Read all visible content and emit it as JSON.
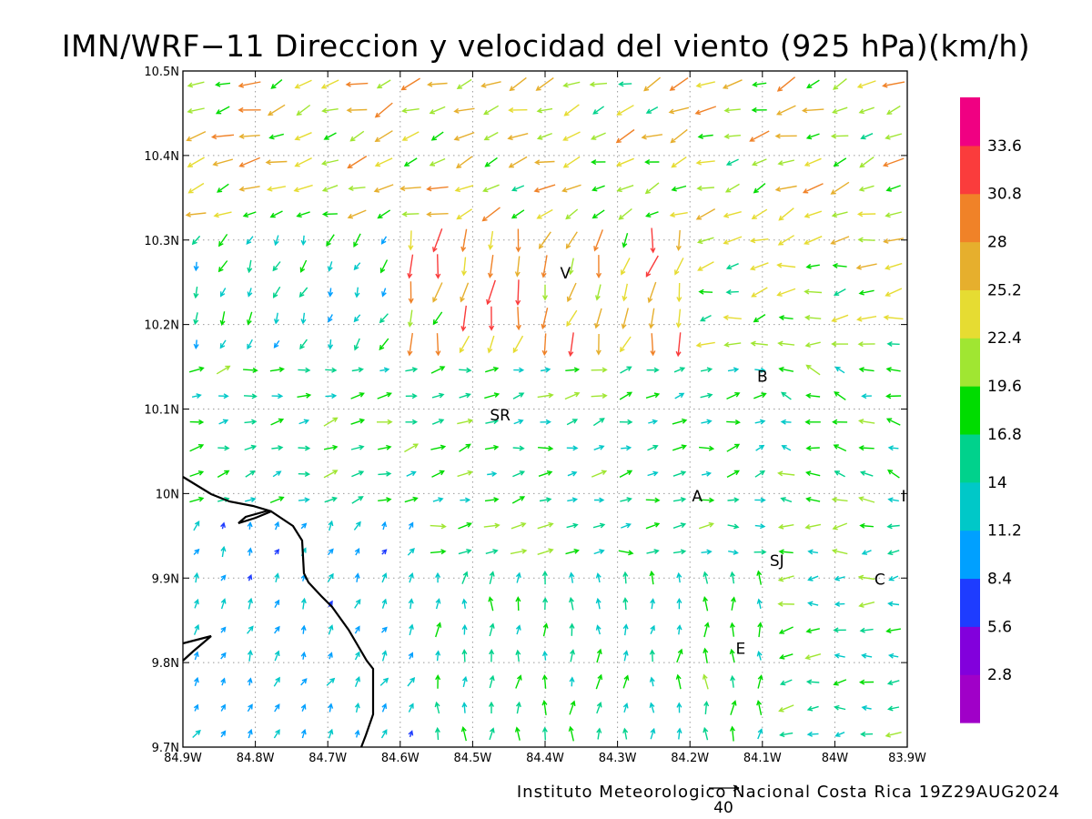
{
  "title": "IMN/WRF−11 Direccion y velocidad del viento (925 hPa)(km/h)",
  "credit": "Instituto Meteorologico Nacional Costa Rica 19Z29AUG2024",
  "reference_vector_label": "40",
  "colors": {
    "frame": "#000000",
    "grid": "#9a9a9a",
    "coastline": "#000000",
    "colorbar": [
      "#a000c8",
      "#8200dc",
      "#1e3cff",
      "#00a0ff",
      "#00c8c8",
      "#00d28c",
      "#00dc00",
      "#a0e632",
      "#e6dc32",
      "#e6af2d",
      "#f08228",
      "#fa3c3c",
      "#f00082"
    ]
  },
  "axes": {
    "x_ticks": [
      "84.9W",
      "84.8W",
      "84.7W",
      "84.6W",
      "84.5W",
      "84.4W",
      "84.3W",
      "84.2W",
      "84.1W",
      "84W",
      "83.9W"
    ],
    "y_ticks": [
      "9.7N",
      "9.8N",
      "9.9N",
      "10N",
      "10.1N",
      "10.2N",
      "10.3N",
      "10.4N",
      "10.5N"
    ]
  },
  "colorbar": {
    "labels": [
      "2.8",
      "5.6",
      "8.4",
      "11.2",
      "14",
      "16.8",
      "19.6",
      "22.4",
      "25.2",
      "28",
      "30.8",
      "33.6"
    ]
  },
  "cities": [
    {
      "label": "V",
      "lon": -84.372,
      "lat": 10.262
    },
    {
      "label": "B",
      "lon": -84.1,
      "lat": 10.14
    },
    {
      "label": "SR",
      "lon": -84.462,
      "lat": 10.094
    },
    {
      "label": "A",
      "lon": -84.19,
      "lat": 9.998
    },
    {
      "label": "I",
      "lon": -83.905,
      "lat": 9.998
    },
    {
      "label": "SJ",
      "lon": -84.08,
      "lat": 9.922
    },
    {
      "label": "C",
      "lon": -83.938,
      "lat": 9.9
    },
    {
      "label": "E",
      "lon": -84.13,
      "lat": 9.818
    }
  ],
  "chart_data": {
    "type": "vector-field",
    "variable": "wind direction and speed at 925 hPa (km/h)",
    "domain": {
      "lon": [
        -84.9,
        -83.9
      ],
      "lat": [
        9.7,
        10.5
      ]
    },
    "speed_colorbar_ticks": [
      2.8,
      5.6,
      8.4,
      11.2,
      14,
      16.8,
      19.6,
      22.4,
      25.2,
      28,
      30.8,
      33.6
    ],
    "reference_vector_kmh": 40,
    "regions": [
      {
        "area": "north (10.35N-10.5N)",
        "direction": "from NE (flow toward SW/WSW)",
        "speed_kmh": [
          19,
          28
        ]
      },
      {
        "area": "north-central mountains (10.15N-10.35N, 84.6W-84.2W)",
        "direction": "from NNE (flow toward SSW)",
        "speed_kmh": [
          22,
          36
        ]
      },
      {
        "area": "west-central (9.95N-10.15N, 84.9W-84.3W)",
        "direction": "from W/SW (flow toward ENE)",
        "speed_kmh": [
          8,
          25
        ]
      },
      {
        "area": "Pacific side south-west (9.7N-9.95N, 84.9W-84.5W)",
        "direction": "from S/SW (flow toward N/NE)",
        "speed_kmh": [
          3,
          16
        ]
      },
      {
        "area": "south-central (9.7N-9.9N, 84.5W-84.2W)",
        "direction": "from S (flow toward N)",
        "speed_kmh": [
          14,
          34
        ]
      },
      {
        "area": "east (9.7N-10.1N, 84.1W-83.9W)",
        "direction": "from E (flow toward W)",
        "speed_kmh": [
          8,
          25
        ]
      }
    ]
  }
}
